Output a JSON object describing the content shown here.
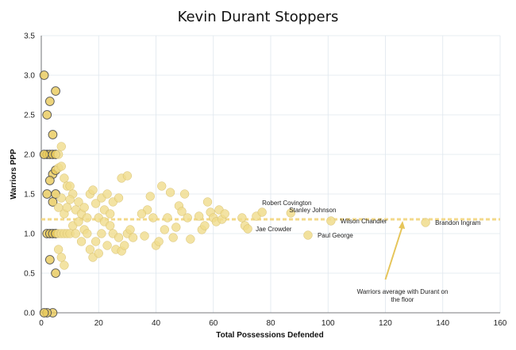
{
  "chart_data": {
    "type": "scatter",
    "title": "Kevin Durant Stoppers",
    "xlabel": "Total Possessions Defended",
    "ylabel": "Warriors PPP",
    "xlim": [
      0,
      160
    ],
    "ylim": [
      0,
      3.5
    ],
    "xticks": [
      "0",
      "20",
      "40",
      "60",
      "80",
      "100",
      "120",
      "140",
      "160"
    ],
    "yticks": [
      "0.0",
      "0.5",
      "1.0",
      "1.5",
      "2.0",
      "2.5",
      "3.0",
      "3.5"
    ],
    "grid": true,
    "reference_line": {
      "y": 1.18,
      "color": "#f3d98a"
    },
    "point_color": "#f0dc8c",
    "highlight_color": "#e8c95a",
    "points": [
      [
        1,
        3.0
      ],
      [
        2,
        2.5
      ],
      [
        3,
        2.67
      ],
      [
        4,
        2.25
      ],
      [
        5,
        2.8
      ],
      [
        2,
        2.0
      ],
      [
        3,
        2.0
      ],
      [
        4,
        2.0
      ],
      [
        5,
        2.0
      ],
      [
        6,
        2.0
      ],
      [
        1,
        2.0
      ],
      [
        7,
        2.1
      ],
      [
        4,
        1.75
      ],
      [
        5,
        1.8
      ],
      [
        6,
        1.83
      ],
      [
        7,
        1.85
      ],
      [
        8,
        1.7
      ],
      [
        9,
        1.6
      ],
      [
        10,
        1.6
      ],
      [
        11,
        1.5
      ],
      [
        2,
        1.5
      ],
      [
        3,
        1.67
      ],
      [
        4,
        1.4
      ],
      [
        5,
        1.5
      ],
      [
        6,
        1.33
      ],
      [
        7,
        1.45
      ],
      [
        8,
        1.25
      ],
      [
        9,
        1.33
      ],
      [
        10,
        1.43
      ],
      [
        12,
        1.3
      ],
      [
        13,
        1.4
      ],
      [
        14,
        1.25
      ],
      [
        15,
        1.33
      ],
      [
        16,
        1.2
      ],
      [
        17,
        1.5
      ],
      [
        18,
        1.55
      ],
      [
        19,
        1.38
      ],
      [
        20,
        1.2
      ],
      [
        21,
        1.45
      ],
      [
        22,
        1.3
      ],
      [
        23,
        1.5
      ],
      [
        24,
        1.25
      ],
      [
        25,
        1.4
      ],
      [
        28,
        1.7
      ],
      [
        30,
        1.73
      ],
      [
        27,
        1.45
      ],
      [
        2,
        1.0
      ],
      [
        3,
        1.0
      ],
      [
        4,
        1.0
      ],
      [
        5,
        1.0
      ],
      [
        6,
        1.0
      ],
      [
        7,
        1.0
      ],
      [
        8,
        1.0
      ],
      [
        9,
        1.0
      ],
      [
        10,
        1.0
      ],
      [
        11,
        1.1
      ],
      [
        12,
        1.0
      ],
      [
        13,
        1.15
      ],
      [
        14,
        0.9
      ],
      [
        15,
        1.05
      ],
      [
        16,
        1.0
      ],
      [
        17,
        0.8
      ],
      [
        18,
        0.7
      ],
      [
        19,
        0.9
      ],
      [
        20,
        0.75
      ],
      [
        21,
        1.0
      ],
      [
        22,
        1.15
      ],
      [
        23,
        0.85
      ],
      [
        24,
        1.1
      ],
      [
        25,
        1.0
      ],
      [
        26,
        0.8
      ],
      [
        27,
        0.95
      ],
      [
        28,
        0.78
      ],
      [
        29,
        0.85
      ],
      [
        30,
        1.0
      ],
      [
        31,
        1.05
      ],
      [
        32,
        0.95
      ],
      [
        3,
        0.67
      ],
      [
        5,
        0.5
      ],
      [
        6,
        0.8
      ],
      [
        7,
        0.7
      ],
      [
        8,
        0.6
      ],
      [
        4,
        0.0
      ],
      [
        2,
        0.0
      ],
      [
        1,
        0.0
      ],
      [
        36,
        0.97
      ],
      [
        37,
        1.3
      ],
      [
        38,
        1.47
      ],
      [
        39,
        1.2
      ],
      [
        40,
        0.85
      ],
      [
        41,
        0.9
      ],
      [
        42,
        1.6
      ],
      [
        43,
        1.05
      ],
      [
        44,
        1.2
      ],
      [
        45,
        1.52
      ],
      [
        46,
        0.95
      ],
      [
        47,
        1.08
      ],
      [
        48,
        1.35
      ],
      [
        49,
        1.28
      ],
      [
        50,
        1.5
      ],
      [
        51,
        1.2
      ],
      [
        52,
        0.93
      ],
      [
        55,
        1.22
      ],
      [
        56,
        1.05
      ],
      [
        57,
        1.1
      ],
      [
        58,
        1.4
      ],
      [
        59,
        1.27
      ],
      [
        60,
        1.2
      ],
      [
        61,
        1.15
      ],
      [
        62,
        1.3
      ],
      [
        63,
        1.18
      ],
      [
        64,
        1.25
      ],
      [
        70,
        1.2
      ],
      [
        71,
        1.1
      ],
      [
        75,
        1.22
      ],
      [
        35,
        1.25
      ]
    ],
    "labeled_points": [
      {
        "name": "Robert Covington",
        "x": 77,
        "y": 1.27
      },
      {
        "name": "Stanley Johnson",
        "x": 87,
        "y": 1.26
      },
      {
        "name": "Wilson Chandler",
        "x": 101,
        "y": 1.16
      },
      {
        "name": "Brandon Ingram",
        "x": 134,
        "y": 1.14
      },
      {
        "name": "Jae Crowder",
        "x": 72,
        "y": 1.06
      },
      {
        "name": "Paul George",
        "x": 93,
        "y": 0.98
      }
    ],
    "annotation": {
      "text_line1": "Warriors average with Durant on",
      "text_line2": "the floor",
      "arrow_from": [
        120,
        0.42
      ],
      "arrow_to": [
        126,
        1.16
      ]
    }
  }
}
